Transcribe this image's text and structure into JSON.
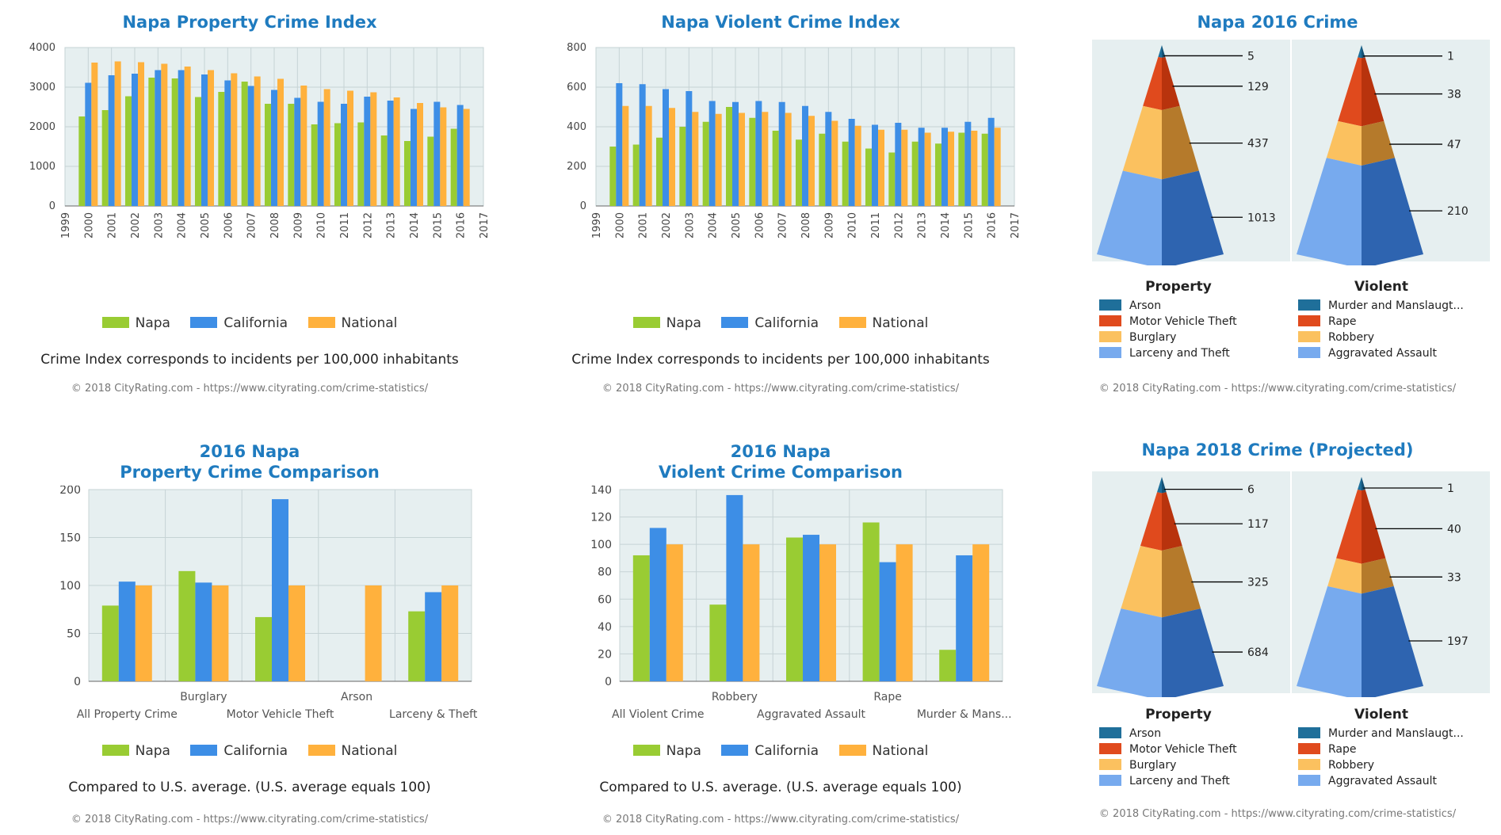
{
  "colors": {
    "napa": "#99cc33",
    "california": "#3d8ee6",
    "national": "#ffb13d",
    "title": "#1f7bbf"
  },
  "legend": [
    "Napa",
    "California",
    "National"
  ],
  "copyright": "© 2018 CityRating.com - https://www.cityrating.com/crime-statistics/",
  "chart_data": [
    {
      "type": "bar",
      "title": "Napa Property Crime Index",
      "categories": [
        "1999",
        "2000",
        "2001",
        "2002",
        "2003",
        "2004",
        "2005",
        "2006",
        "2007",
        "2008",
        "2009",
        "2010",
        "2011",
        "2012",
        "2013",
        "2014",
        "2015",
        "2016",
        "2017"
      ],
      "series": [
        {
          "name": "Napa",
          "values": [
            null,
            2260,
            2420,
            2770,
            3240,
            3220,
            2750,
            2880,
            3140,
            2580,
            2580,
            2060,
            2090,
            2110,
            1780,
            1640,
            1750,
            1950,
            null
          ]
        },
        {
          "name": "California",
          "values": [
            null,
            3110,
            3300,
            3340,
            3430,
            3430,
            3320,
            3170,
            3030,
            2930,
            2730,
            2630,
            2580,
            2760,
            2660,
            2450,
            2630,
            2550,
            null
          ]
        },
        {
          "name": "National",
          "values": [
            null,
            3620,
            3650,
            3630,
            3590,
            3520,
            3430,
            3350,
            3270,
            3210,
            3040,
            2950,
            2910,
            2870,
            2740,
            2600,
            2490,
            2450,
            null
          ]
        }
      ],
      "ylim": [
        0,
        4000
      ],
      "yticks": [
        0,
        1000,
        2000,
        3000,
        4000
      ],
      "note": "Crime Index corresponds to incidents per 100,000 inhabitants"
    },
    {
      "type": "bar",
      "title": "Napa Violent Crime Index",
      "categories": [
        "1999",
        "2000",
        "2001",
        "2002",
        "2003",
        "2004",
        "2005",
        "2006",
        "2007",
        "2008",
        "2009",
        "2010",
        "2011",
        "2012",
        "2013",
        "2014",
        "2015",
        "2016",
        "2017"
      ],
      "series": [
        {
          "name": "Napa",
          "values": [
            null,
            300,
            310,
            345,
            400,
            425,
            500,
            445,
            380,
            335,
            365,
            325,
            290,
            270,
            325,
            315,
            370,
            365,
            null
          ]
        },
        {
          "name": "California",
          "values": [
            null,
            620,
            615,
            590,
            580,
            530,
            525,
            530,
            525,
            505,
            475,
            440,
            410,
            420,
            395,
            395,
            425,
            445,
            null
          ]
        },
        {
          "name": "National",
          "values": [
            null,
            505,
            505,
            495,
            475,
            465,
            470,
            475,
            470,
            455,
            430,
            405,
            385,
            385,
            370,
            375,
            380,
            395,
            null
          ]
        }
      ],
      "ylim": [
        0,
        800
      ],
      "yticks": [
        0,
        200,
        400,
        600,
        800
      ],
      "note": "Crime Index corresponds to incidents per 100,000 inhabitants"
    },
    {
      "type": "bar",
      "title_line1": "2016 Napa",
      "title_line2": "Property Crime Comparison",
      "categories": [
        "All Property Crime",
        "Burglary",
        "Motor Vehicle Theft",
        "Arson",
        "Larceny & Theft"
      ],
      "labels_row1": [
        "",
        "Burglary",
        "",
        "Arson",
        ""
      ],
      "labels_row2": [
        "All Property Crime",
        "",
        "Motor Vehicle Theft",
        "",
        "Larceny & Theft"
      ],
      "series": [
        {
          "name": "Napa",
          "values": [
            79,
            115,
            67,
            0,
            73
          ]
        },
        {
          "name": "California",
          "values": [
            104,
            103,
            190,
            0,
            93
          ]
        },
        {
          "name": "National",
          "values": [
            100,
            100,
            100,
            100,
            100
          ]
        }
      ],
      "ylim": [
        0,
        200
      ],
      "yticks": [
        0,
        50,
        100,
        150,
        200
      ],
      "note": "Compared to U.S. average. (U.S. average equals 100)"
    },
    {
      "type": "bar",
      "title_line1": "2016 Napa",
      "title_line2": "Violent Crime Comparison",
      "categories": [
        "All Violent Crime",
        "Robbery",
        "Aggravated Assault",
        "Rape",
        "Murder & Mans..."
      ],
      "labels_row1": [
        "",
        "Robbery",
        "",
        "Rape",
        ""
      ],
      "labels_row2": [
        "All Violent Crime",
        "",
        "Aggravated Assault",
        "",
        "Murder & Mans..."
      ],
      "series": [
        {
          "name": "Napa",
          "values": [
            92,
            56,
            105,
            116,
            23
          ]
        },
        {
          "name": "California",
          "values": [
            112,
            136,
            107,
            87,
            92
          ]
        },
        {
          "name": "National",
          "values": [
            100,
            100,
            100,
            100,
            100
          ]
        }
      ],
      "ylim": [
        0,
        140
      ],
      "yticks": [
        0,
        20,
        40,
        60,
        80,
        100,
        120,
        140
      ],
      "note": "Compared to U.S. average. (U.S. average equals 100)"
    },
    {
      "type": "pyramid",
      "title": "Napa 2016 Crime",
      "property": {
        "heading": "Property",
        "labels": [
          "Arson",
          "Motor Vehicle Theft",
          "Burglary",
          "Larceny and Theft"
        ],
        "values": [
          5,
          129,
          437,
          1013
        ]
      },
      "violent": {
        "heading": "Violent",
        "labels": [
          "Murder and Manslaugt...",
          "Rape",
          "Robbery",
          "Aggravated Assault"
        ],
        "values": [
          1,
          38,
          47,
          210
        ]
      }
    },
    {
      "type": "pyramid",
      "title": "Napa 2018 Crime (Projected)",
      "property": {
        "heading": "Property",
        "labels": [
          "Arson",
          "Motor Vehicle Theft",
          "Burglary",
          "Larceny and Theft"
        ],
        "values": [
          6,
          117,
          325,
          684
        ]
      },
      "violent": {
        "heading": "Violent",
        "labels": [
          "Murder and Manslaugt...",
          "Rape",
          "Robbery",
          "Aggravated Assault"
        ],
        "values": [
          1,
          40,
          33,
          197
        ]
      }
    }
  ],
  "pyramid_colors": {
    "light": [
      "#1f6f9a",
      "#e04a1d",
      "#fbc15f",
      "#77aaee"
    ],
    "dark": [
      "#145276",
      "#b8330d",
      "#b57a2b",
      "#2e64b0"
    ]
  }
}
